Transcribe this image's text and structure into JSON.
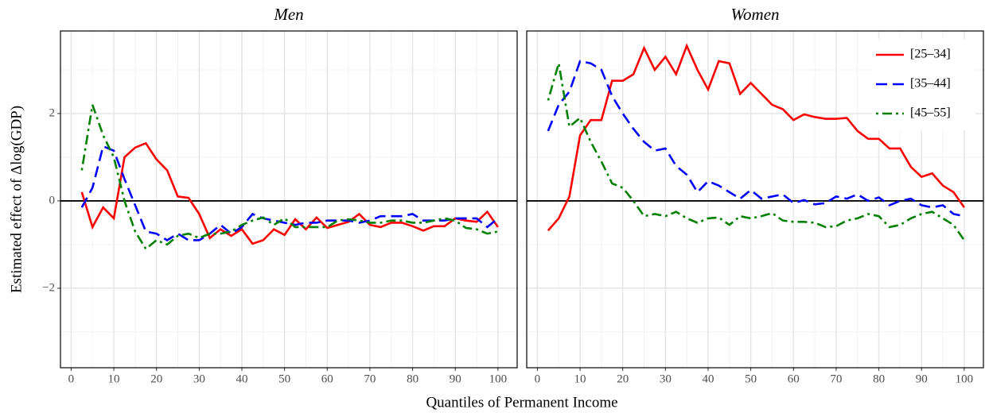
{
  "xlabel": "Quantiles of Permanent Income",
  "ylabel": "Estimated effect of Δlog(GDP)",
  "chart_data": [
    {
      "type": "line",
      "title": "Men",
      "x": [
        2.5,
        5,
        7.5,
        10,
        12.5,
        15,
        17.5,
        20,
        22.5,
        25,
        27.5,
        30,
        32.5,
        35,
        37.5,
        40,
        42.5,
        45,
        47.5,
        50,
        52.5,
        55,
        57.5,
        60,
        62.5,
        65,
        67.5,
        70,
        72.5,
        75,
        77.5,
        80,
        82.5,
        85,
        87.5,
        90,
        92.5,
        95,
        97.5,
        100
      ],
      "xlim": [
        -2.5,
        104.5
      ],
      "xticks": [
        0,
        10,
        20,
        30,
        40,
        50,
        60,
        70,
        80,
        90,
        100
      ],
      "xminor": [
        5,
        15,
        25,
        35,
        45,
        55,
        65,
        75,
        85,
        95
      ],
      "ylim": [
        -3.82,
        3.89
      ],
      "yticks": [
        {
          "value": -2,
          "label": "−2"
        },
        0,
        2
      ],
      "yminor": [
        -3,
        -1,
        1,
        3
      ],
      "hline": 0,
      "grid": true,
      "legend": "none",
      "series": [
        {
          "name": "[25–34]",
          "color": "#ff0000",
          "style": "solid",
          "values": [
            0.2,
            -0.6,
            -0.15,
            -0.4,
            1.0,
            1.22,
            1.32,
            0.95,
            0.7,
            0.1,
            0.07,
            -0.3,
            -0.85,
            -0.65,
            -0.8,
            -0.65,
            -0.98,
            -0.9,
            -0.65,
            -0.78,
            -0.42,
            -0.65,
            -0.38,
            -0.62,
            -0.55,
            -0.48,
            -0.3,
            -0.55,
            -0.6,
            -0.5,
            -0.5,
            -0.58,
            -0.68,
            -0.58,
            -0.58,
            -0.4,
            -0.45,
            -0.48,
            -0.25,
            -0.6
          ]
        },
        {
          "name": "[35–44]",
          "color": "#0000ff",
          "style": "dashed",
          "values": [
            -0.15,
            0.3,
            1.25,
            1.15,
            0.5,
            -0.1,
            -0.7,
            -0.75,
            -0.9,
            -0.75,
            -0.9,
            -0.9,
            -0.75,
            -0.55,
            -0.75,
            -0.6,
            -0.3,
            -0.4,
            -0.45,
            -0.5,
            -0.55,
            -0.5,
            -0.5,
            -0.45,
            -0.45,
            -0.45,
            -0.5,
            -0.45,
            -0.35,
            -0.35,
            -0.35,
            -0.3,
            -0.45,
            -0.45,
            -0.45,
            -0.4,
            -0.4,
            -0.4,
            -0.6,
            -0.4
          ]
        },
        {
          "name": "[45–55]",
          "color": "#008000",
          "style": "dotdash",
          "values": [
            0.7,
            2.2,
            1.5,
            1.0,
            0.0,
            -0.7,
            -1.1,
            -0.9,
            -1.0,
            -0.8,
            -0.75,
            -0.85,
            -0.75,
            -0.75,
            -0.7,
            -0.55,
            -0.45,
            -0.38,
            -0.55,
            -0.4,
            -0.6,
            -0.6,
            -0.6,
            -0.6,
            -0.45,
            -0.42,
            -0.45,
            -0.5,
            -0.5,
            -0.45,
            -0.45,
            -0.5,
            -0.5,
            -0.45,
            -0.4,
            -0.45,
            -0.62,
            -0.65,
            -0.75,
            -0.7
          ]
        }
      ]
    },
    {
      "type": "line",
      "title": "Women",
      "x": [
        2.5,
        5,
        7.5,
        10,
        12.5,
        15,
        17.5,
        20,
        22.5,
        25,
        27.5,
        30,
        32.5,
        35,
        37.5,
        40,
        42.5,
        45,
        47.5,
        50,
        52.5,
        55,
        57.5,
        60,
        62.5,
        65,
        67.5,
        70,
        72.5,
        75,
        77.5,
        80,
        82.5,
        85,
        87.5,
        90,
        92.5,
        95,
        97.5,
        100
      ],
      "xlim": [
        -2.5,
        104.5
      ],
      "xticks": [
        0,
        10,
        20,
        30,
        40,
        50,
        60,
        70,
        80,
        90,
        100
      ],
      "xminor": [
        5,
        15,
        25,
        35,
        45,
        55,
        65,
        75,
        85,
        95
      ],
      "ylim": [
        -3.82,
        3.89
      ],
      "yminor": [
        -3,
        -1,
        1,
        3
      ],
      "ygrid": [
        -2,
        0,
        2
      ],
      "hline": 0,
      "grid": true,
      "legend": "top-right",
      "series": [
        {
          "name": "[25–34]",
          "color": "#ff0000",
          "style": "solid",
          "values": [
            -0.68,
            -0.4,
            0.1,
            1.5,
            1.85,
            1.85,
            2.75,
            2.75,
            2.9,
            3.5,
            3.0,
            3.3,
            2.9,
            3.55,
            3.0,
            2.55,
            3.2,
            3.15,
            2.45,
            2.7,
            2.45,
            2.2,
            2.1,
            1.85,
            1.98,
            1.92,
            1.88,
            1.88,
            1.9,
            1.6,
            1.42,
            1.42,
            1.2,
            1.2,
            0.78,
            0.55,
            0.63,
            0.35,
            0.2,
            -0.15
          ]
        },
        {
          "name": "[35–44]",
          "color": "#0000ff",
          "style": "dashed",
          "values": [
            1.6,
            2.2,
            2.5,
            3.2,
            3.15,
            3.0,
            2.4,
            2.0,
            1.65,
            1.35,
            1.15,
            1.2,
            0.8,
            0.6,
            0.2,
            0.45,
            0.35,
            0.2,
            0.05,
            0.25,
            0.05,
            0.1,
            0.15,
            -0.05,
            0.02,
            -0.08,
            -0.05,
            0.1,
            0.05,
            0.15,
            0.0,
            0.08,
            -0.1,
            0.0,
            0.05,
            -0.1,
            -0.15,
            -0.1,
            -0.3,
            -0.35
          ]
        },
        {
          "name": "[45–55]",
          "color": "#008000",
          "style": "dotdash",
          "values": [
            2.3,
            3.15,
            1.7,
            1.9,
            1.35,
            0.9,
            0.4,
            0.3,
            0.0,
            -0.35,
            -0.3,
            -0.35,
            -0.25,
            -0.4,
            -0.5,
            -0.4,
            -0.38,
            -0.55,
            -0.35,
            -0.4,
            -0.35,
            -0.28,
            -0.45,
            -0.48,
            -0.48,
            -0.5,
            -0.6,
            -0.58,
            -0.45,
            -0.4,
            -0.3,
            -0.35,
            -0.6,
            -0.55,
            -0.4,
            -0.3,
            -0.25,
            -0.4,
            -0.55,
            -0.9
          ]
        }
      ]
    }
  ]
}
